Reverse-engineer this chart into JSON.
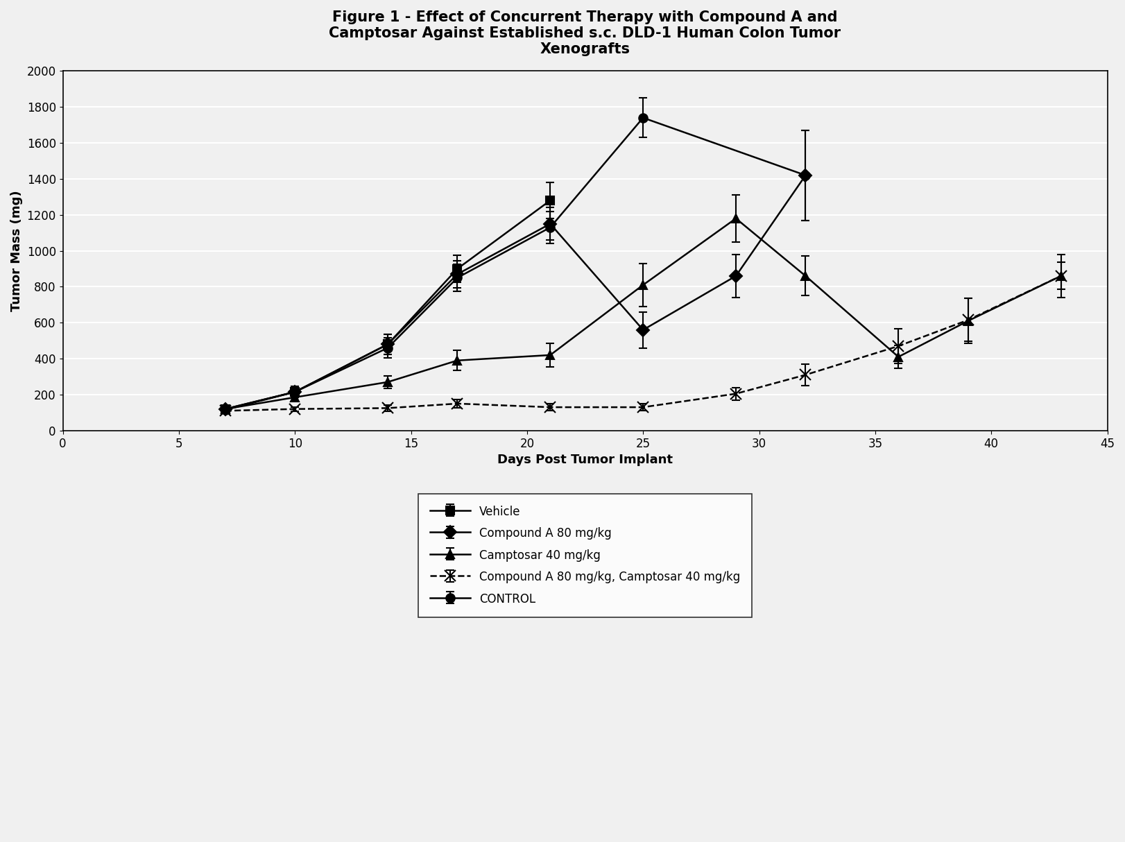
{
  "title": "Figure 1 - Effect of Concurrent Therapy with Compound A and\nCamptosar Against Established s.c. DLD-1 Human Colon Tumor\nXenografts",
  "xlabel": "Days Post Tumor Implant",
  "ylabel": "Tumor Mass (mg)",
  "xlim": [
    0,
    45
  ],
  "ylim": [
    0,
    2000
  ],
  "xticks": [
    0,
    5,
    10,
    15,
    20,
    25,
    30,
    35,
    40,
    45
  ],
  "yticks": [
    0,
    200,
    400,
    600,
    800,
    1000,
    1200,
    1400,
    1600,
    1800,
    2000
  ],
  "vehicle": {
    "x": [
      7,
      10,
      14,
      17,
      21
    ],
    "y": [
      120,
      215,
      480,
      900,
      1280
    ],
    "yerr": [
      15,
      30,
      55,
      75,
      100
    ],
    "label": "Vehicle",
    "marker": "s",
    "linestyle": "-"
  },
  "compound_a": {
    "x": [
      7,
      10,
      14,
      17,
      21,
      25,
      29,
      32
    ],
    "y": [
      120,
      215,
      480,
      870,
      1150,
      560,
      860,
      1420
    ],
    "yerr": [
      15,
      30,
      55,
      75,
      90,
      100,
      120,
      250
    ],
    "label": "Compound A 80 mg/kg",
    "marker": "D",
    "linestyle": "-"
  },
  "camptosar": {
    "x": [
      7,
      10,
      14,
      17,
      21,
      25,
      29,
      32,
      36,
      39,
      43
    ],
    "y": [
      120,
      185,
      270,
      390,
      420,
      810,
      1180,
      860,
      410,
      610,
      860
    ],
    "yerr": [
      15,
      20,
      35,
      55,
      65,
      120,
      130,
      110,
      65,
      125,
      75
    ],
    "label": "Camptosar 40 mg/kg",
    "marker": "^",
    "linestyle": "-"
  },
  "combo": {
    "x": [
      7,
      10,
      14,
      17,
      21,
      25,
      29,
      32,
      36,
      39,
      43
    ],
    "y": [
      110,
      120,
      125,
      150,
      130,
      130,
      205,
      310,
      470,
      615,
      860
    ],
    "yerr": [
      10,
      12,
      18,
      22,
      18,
      18,
      35,
      60,
      95,
      120,
      120
    ],
    "label": "Compound A 80 mg/kg, Camptosar 40 mg/kg",
    "marker": "x",
    "linestyle": "--"
  },
  "control": {
    "x": [
      7,
      10,
      14,
      17,
      21,
      25,
      32
    ],
    "y": [
      115,
      215,
      460,
      850,
      1130,
      1740,
      1420
    ],
    "yerr": [
      15,
      30,
      55,
      75,
      90,
      110,
      250
    ],
    "label": "CONTROL",
    "marker": "o",
    "linestyle": "-"
  },
  "background_color": "#f0f0f0",
  "plot_background": "#f0f0f0",
  "grid_color": "#ffffff",
  "line_color": "#000000",
  "title_fontsize": 15,
  "label_fontsize": 13,
  "tick_fontsize": 12,
  "legend_fontsize": 12
}
